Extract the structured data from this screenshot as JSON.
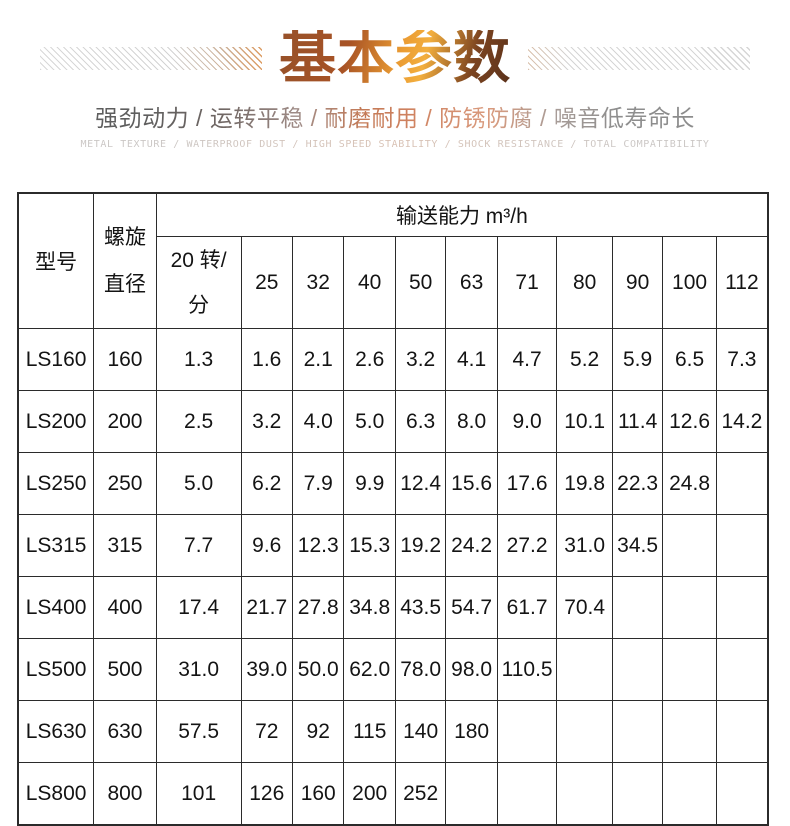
{
  "header": {
    "title": "基本参数",
    "features_line": "强劲动力 / 运转平稳 / 耐磨耐用 / 防锈防腐 / 噪音低寿命长",
    "english_line": "METAL TEXTURE / WATERPROOF DUST / HIGH SPEED STABILITY / SHOCK RESISTANCE / TOTAL COMPATIBILITY"
  },
  "colors": {
    "title_gradient": [
      "#96512a",
      "#a85325",
      "#eb9c33",
      "#f2ae3e",
      "#59301a"
    ],
    "feature_gray": "#5e5e5e",
    "feature_salmon": "#cf8260",
    "english_light_gray": "#cac6c4",
    "hatch_gray": "#d5d5d5",
    "hatch_orange": "#dd9d64",
    "table_border": "#2b2b2b",
    "table_text": "#141414"
  },
  "table": {
    "header": {
      "model_label": "型号",
      "diameter_line1": "螺旋",
      "diameter_line2": "直径",
      "capacity_label": "输送能力 m³/h",
      "rpm_line1": "20 转/",
      "rpm_line2": "分",
      "speed_columns": [
        "25",
        "32",
        "40",
        "50",
        "63",
        "71",
        "80",
        "90",
        "100",
        "112"
      ]
    },
    "rows": [
      {
        "model": "LS160",
        "diameter": "160",
        "rpm20": "1.3",
        "values": [
          "1.6",
          "2.1",
          "2.6",
          "3.2",
          "4.1",
          "4.7",
          "5.2",
          "5.9",
          "6.5",
          "7.3"
        ]
      },
      {
        "model": "LS200",
        "diameter": "200",
        "rpm20": "2.5",
        "values": [
          "3.2",
          "4.0",
          "5.0",
          "6.3",
          "8.0",
          "9.0",
          "10.1",
          "11.4",
          "12.6",
          "14.2"
        ]
      },
      {
        "model": "LS250",
        "diameter": "250",
        "rpm20": "5.0",
        "values": [
          "6.2",
          "7.9",
          "9.9",
          "12.4",
          "15.6",
          "17.6",
          "19.8",
          "22.3",
          "24.8",
          ""
        ]
      },
      {
        "model": "LS315",
        "diameter": "315",
        "rpm20": "7.7",
        "values": [
          "9.6",
          "12.3",
          "15.3",
          "19.2",
          "24.2",
          "27.2",
          "31.0",
          "34.5",
          "",
          ""
        ]
      },
      {
        "model": "LS400",
        "diameter": "400",
        "rpm20": "17.4",
        "values": [
          "21.7",
          "27.8",
          "34.8",
          "43.5",
          "54.7",
          "61.7",
          "70.4",
          "",
          "",
          ""
        ]
      },
      {
        "model": "LS500",
        "diameter": "500",
        "rpm20": "31.0",
        "values": [
          "39.0",
          "50.0",
          "62.0",
          "78.0",
          "98.0",
          "110.5",
          "",
          "",
          "",
          ""
        ]
      },
      {
        "model": "LS630",
        "diameter": "630",
        "rpm20": "57.5",
        "values": [
          "72",
          "92",
          "115",
          "140",
          "180",
          "",
          "",
          "",
          "",
          ""
        ]
      },
      {
        "model": "LS800",
        "diameter": "800",
        "rpm20": "101",
        "values": [
          "126",
          "160",
          "200",
          "252",
          "",
          "",
          "",
          "",
          "",
          ""
        ]
      }
    ]
  }
}
